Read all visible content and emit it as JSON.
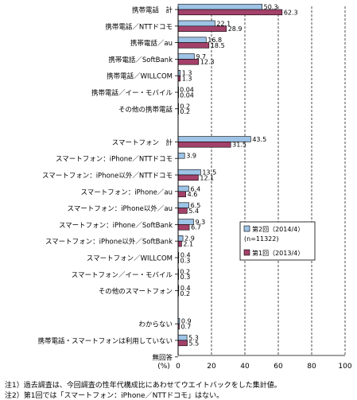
{
  "chart_data": {
    "type": "bar",
    "orientation": "horizontal",
    "categories": [
      "携帯電話　計",
      "携帯電話／NTTドコモ",
      "携帯電話／au",
      "携帯電話／SoftBank",
      "携帯電話／WILLCOM",
      "携帯電話／イー・モバイル",
      "その他の携帯電話",
      "",
      "スマートフォン　計",
      "スマートフォン：iPhone／NTTドコモ",
      "スマートフォン：iPhone以外／NTTドコモ",
      "スマートフォン：iPhone／au",
      "スマートフォン：iPhone以外／au",
      "スマートフォン：iPhone／SoftBank",
      "スマートフォン：iPhone以外／SoftBank",
      "スマートフォン／WILLCOM",
      "スマートフォン／イー・モバイル",
      "その他のスマートフォン",
      "",
      "わからない",
      "携帯電話・スマートフォンは利用していない",
      "無回答"
    ],
    "series": [
      {
        "name": "第2回（2014/4）",
        "color": "#9dc3e6",
        "values": [
          50.3,
          22.1,
          16.8,
          9.7,
          1.3,
          0.04,
          0.2,
          null,
          43.5,
          3.9,
          13.5,
          6.4,
          6.5,
          9.3,
          2.9,
          0.4,
          0.2,
          0.4,
          null,
          0.9,
          5.3,
          0.0
        ],
        "labels": [
          "50.3",
          "22.1",
          "16.8",
          "9.7",
          "1.3",
          "0.04",
          "0.2",
          "",
          "43.5",
          "3.9",
          "13.5",
          "6.4",
          "6.5",
          "9.3",
          "2.9",
          "0.4",
          "0.2",
          "0.4",
          "",
          "0.9",
          "5.3",
          ""
        ]
      },
      {
        "name": "第1回（2013/4）",
        "color": "#a3416a",
        "values": [
          62.3,
          28.9,
          18.5,
          12.3,
          1.3,
          0.04,
          0.2,
          null,
          31.5,
          null,
          12.1,
          4.6,
          5.4,
          6.7,
          2.1,
          0.3,
          0.3,
          0.2,
          null,
          0.7,
          5.5,
          0.0
        ],
        "labels": [
          "62.3",
          "28.9",
          "18.5",
          "12.3",
          "1.3",
          "0.04",
          "0.2",
          "",
          "31.5",
          "",
          "12.1",
          "4.6",
          "5.4",
          "6.7",
          "2.1",
          "0.3",
          "0.3",
          "0.2",
          "",
          "0.7",
          "5.5",
          ""
        ]
      }
    ],
    "xlim": [
      0,
      100
    ],
    "xticks": [
      0,
      20,
      40,
      60,
      80,
      100
    ],
    "xunit": "(%)",
    "grid": true,
    "legend": {
      "position": "right-middle",
      "entries": [
        "第2回（2014/4）",
        "(n=11322)",
        "第1回（2013/4）"
      ]
    }
  },
  "notes": [
    "注1）過去調査は、今回調査の性年代構成比にあわせてウエイトバックをした集計値。",
    "注2）第1回では「スマートフォン：iPhone／NTTドコモ」はない。"
  ]
}
